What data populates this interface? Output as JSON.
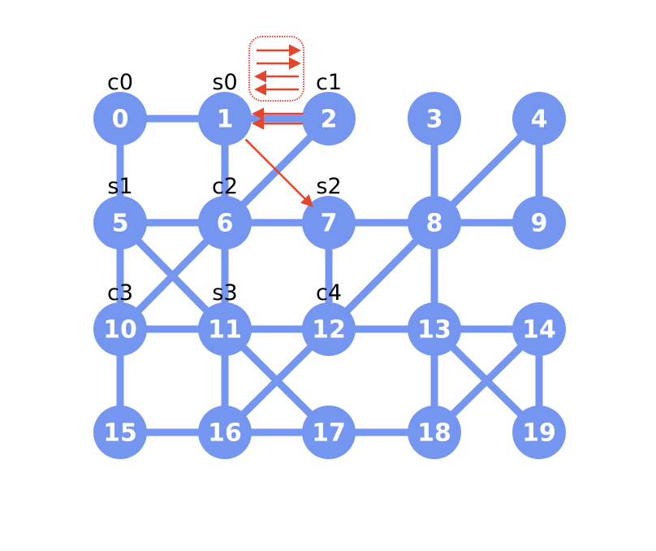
{
  "nodes": [
    {
      "id": "0",
      "label": "0",
      "role": "c0"
    },
    {
      "id": "1",
      "label": "1",
      "role": "s0"
    },
    {
      "id": "2",
      "label": "2",
      "role": "c1"
    },
    {
      "id": "3",
      "label": "3",
      "role": ""
    },
    {
      "id": "4",
      "label": "4",
      "role": ""
    },
    {
      "id": "5",
      "label": "5",
      "role": "s1"
    },
    {
      "id": "6",
      "label": "6",
      "role": "c2"
    },
    {
      "id": "7",
      "label": "7",
      "role": "s2"
    },
    {
      "id": "8",
      "label": "8",
      "role": ""
    },
    {
      "id": "9",
      "label": "9",
      "role": ""
    },
    {
      "id": "10",
      "label": "10",
      "role": "c3"
    },
    {
      "id": "11",
      "label": "11",
      "role": "s3"
    },
    {
      "id": "12",
      "label": "12",
      "role": "c4"
    },
    {
      "id": "13",
      "label": "13",
      "role": ""
    },
    {
      "id": "14",
      "label": "14",
      "role": ""
    },
    {
      "id": "15",
      "label": "15",
      "role": ""
    },
    {
      "id": "16",
      "label": "16",
      "role": ""
    },
    {
      "id": "17",
      "label": "17",
      "role": ""
    },
    {
      "id": "18",
      "label": "18",
      "role": ""
    },
    {
      "id": "19",
      "label": "19",
      "role": ""
    }
  ],
  "edges": [
    [
      "0",
      "1"
    ],
    [
      "1",
      "2"
    ],
    [
      "0",
      "5"
    ],
    [
      "1",
      "6"
    ],
    [
      "2",
      "6"
    ],
    [
      "3",
      "8"
    ],
    [
      "4",
      "8"
    ],
    [
      "4",
      "9"
    ],
    [
      "5",
      "6"
    ],
    [
      "6",
      "7"
    ],
    [
      "7",
      "8"
    ],
    [
      "8",
      "9"
    ],
    [
      "5",
      "10"
    ],
    [
      "5",
      "11"
    ],
    [
      "6",
      "10"
    ],
    [
      "6",
      "11"
    ],
    [
      "7",
      "12"
    ],
    [
      "8",
      "12"
    ],
    [
      "8",
      "13"
    ],
    [
      "10",
      "11"
    ],
    [
      "11",
      "12"
    ],
    [
      "12",
      "13"
    ],
    [
      "13",
      "14"
    ],
    [
      "10",
      "15"
    ],
    [
      "11",
      "16"
    ],
    [
      "11",
      "17"
    ],
    [
      "12",
      "16"
    ],
    [
      "13",
      "18"
    ],
    [
      "13",
      "19"
    ],
    [
      "14",
      "18"
    ],
    [
      "14",
      "19"
    ],
    [
      "15",
      "16"
    ],
    [
      "16",
      "17"
    ],
    [
      "17",
      "18"
    ]
  ],
  "arrows": [
    {
      "from": "2",
      "to": "1",
      "kind": "double"
    },
    {
      "from": "1",
      "to": "7",
      "kind": "single"
    }
  ],
  "legend": {
    "arrow_directions": [
      "right",
      "right",
      "left",
      "left"
    ]
  },
  "colors": {
    "node": "#7496f1",
    "edge": "#7496f1",
    "arrow": "#e4452d",
    "node_text": "#ffffff",
    "role_text": "#000000"
  }
}
